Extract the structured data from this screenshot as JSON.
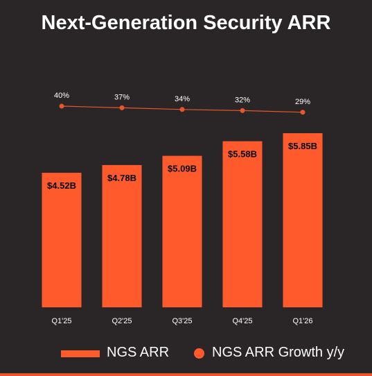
{
  "title": "Next-Generation Security ARR",
  "colors": {
    "bar": "#ff5a2c",
    "line": "#e8562a",
    "background": "#2a2627",
    "text": "#ffffff",
    "bar_label": "#000000"
  },
  "legend": {
    "bar_label": "NGS ARR",
    "line_label": "NGS ARR Growth y/y"
  },
  "chart_data": {
    "type": "bar",
    "title": "Next-Generation Security ARR",
    "categories": [
      "Q1'25",
      "Q2'25",
      "Q3'25",
      "Q4'25",
      "Q1'26"
    ],
    "series": [
      {
        "name": "NGS ARR",
        "type": "bar",
        "values": [
          4.52,
          4.78,
          5.09,
          5.58,
          5.85
        ],
        "labels": [
          "$4.52B",
          "$4.78B",
          "$5.09B",
          "$5.58B",
          "$5.85B"
        ]
      },
      {
        "name": "NGS ARR Growth y/y",
        "type": "line",
        "values": [
          40,
          37,
          34,
          32,
          29
        ],
        "labels": [
          "40%",
          "37%",
          "34%",
          "32%",
          "29%"
        ]
      }
    ],
    "legend_position": "bottom"
  }
}
